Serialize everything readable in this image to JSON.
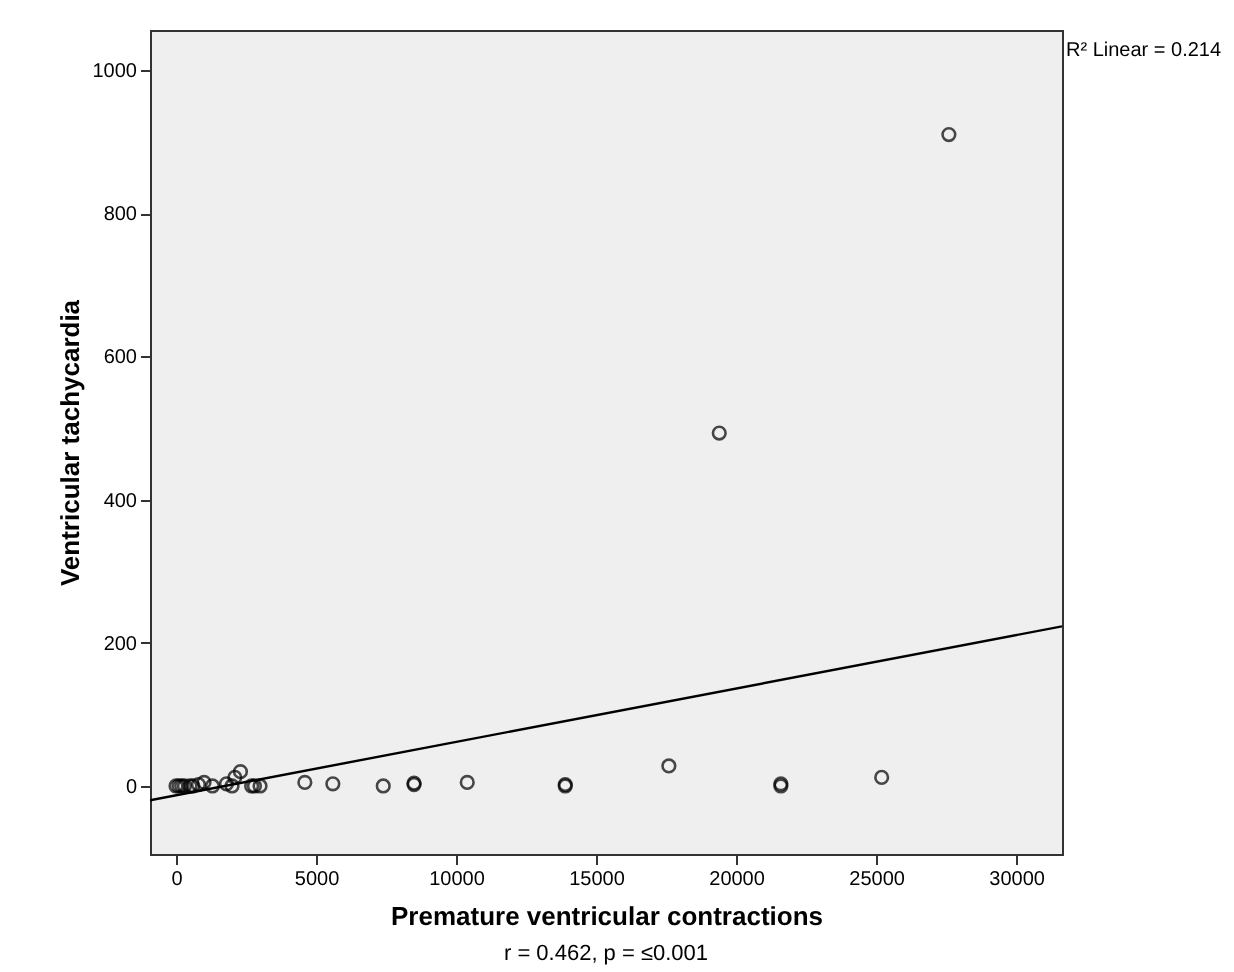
{
  "chart_data": {
    "type": "scatter",
    "xlabel": "Premature ventricular contractions",
    "ylabel": "Ventricular tachycardia",
    "xlim": [
      -930,
      31640
    ],
    "ylim": [
      -95,
      1056
    ],
    "xticks": [
      0,
      5000,
      10000,
      15000,
      20000,
      25000,
      30000
    ],
    "yticks": [
      0,
      200,
      400,
      600,
      800,
      1000
    ],
    "grid": false,
    "marker": "circle",
    "series": [
      {
        "color": "#000000",
        "x": [
          27600,
          19400,
          17600,
          25200,
          21600,
          21600,
          13900,
          13900,
          10400,
          8500,
          8500,
          7400,
          5600,
          4600,
          3000,
          2800,
          2700,
          2300,
          2100,
          2000,
          1800,
          1300,
          1000,
          800,
          600,
          500,
          300,
          200,
          100,
          0
        ],
        "values": [
          910,
          493,
          28,
          12,
          3,
          0,
          0,
          2,
          5,
          4,
          2,
          0,
          3,
          5,
          0,
          0,
          0,
          20,
          12,
          0,
          3,
          0,
          5,
          2,
          0,
          0,
          0,
          0,
          0,
          0
        ]
      },
      {
        "type": "line",
        "color": "#000000",
        "line_style": "solid",
        "marker": "none",
        "x": [
          -930,
          31640
        ],
        "values": [
          -20,
          223
        ]
      }
    ],
    "annotations": [
      "R² Linear = 0.214",
      "r = 0.462, p = ≤0.001"
    ]
  }
}
